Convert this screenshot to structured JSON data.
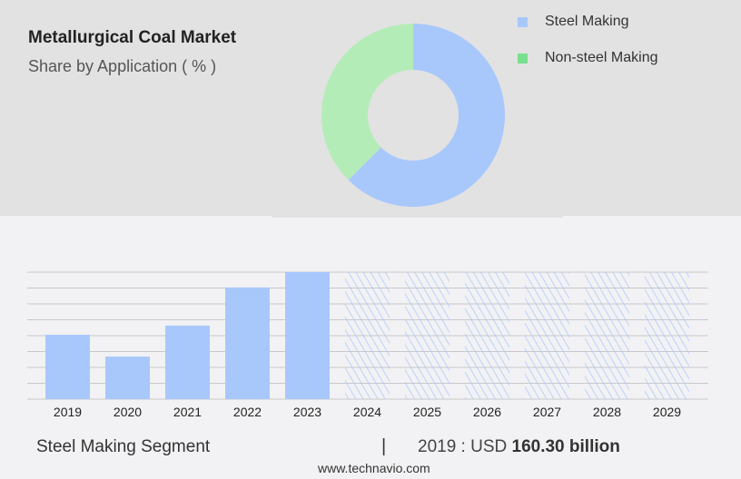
{
  "header": {
    "title": "Metallurgical Coal Market",
    "subtitle": "Share by Application ( % )"
  },
  "colors": {
    "steel": "#a8c8fc",
    "non_steel": "#b4ecb8",
    "non_steel_legend": "#78e08e",
    "hatch": "#a8c8fc"
  },
  "chart_data": [
    {
      "type": "pie",
      "donut": true,
      "categories": [
        "Steel Making",
        "Non-steel Making"
      ],
      "values": [
        62.5,
        37.5
      ],
      "legend": "top-right"
    },
    {
      "type": "bar",
      "categories": [
        "2019",
        "2020",
        "2021",
        "2022",
        "2023",
        "2024",
        "2025",
        "2026",
        "2027",
        "2028",
        "2029"
      ],
      "values": [
        160.3,
        106,
        183,
        278,
        316,
        null,
        null,
        null,
        null,
        null,
        null
      ],
      "forecast_from": "2024",
      "grid": true,
      "ylim": [
        0,
        316
      ]
    }
  ],
  "footer": {
    "segment": "Steel Making Segment",
    "separator": "|",
    "value_prefix": "2019 : USD",
    "value": "160.30 billion",
    "site": "www.technavio.com"
  }
}
